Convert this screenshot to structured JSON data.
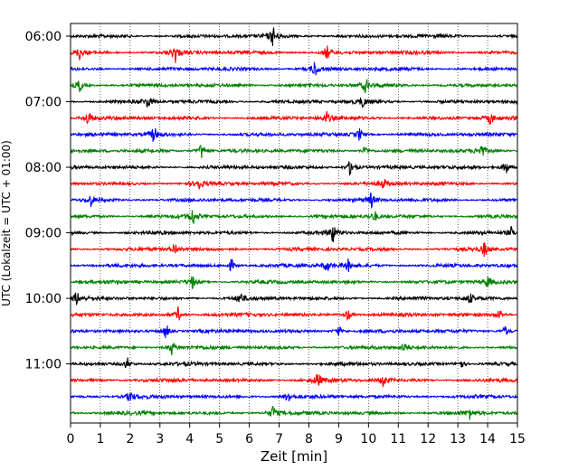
{
  "chart_data": {
    "type": "line",
    "title": "",
    "xlabel": "Zeit  [min]",
    "ylabel": "UTC (Lokalzeit = UTC + 01:00)",
    "xlim": [
      0,
      15
    ],
    "x_ticks": [
      "0",
      "1",
      "2",
      "3",
      "4",
      "5",
      "6",
      "7",
      "8",
      "9",
      "10",
      "11",
      "12",
      "13",
      "14",
      "15"
    ],
    "y_ticks": [
      "06:00",
      "07:00",
      "08:00",
      "09:00",
      "10:00",
      "11:00"
    ],
    "grid": "vertical dotted",
    "trace_interval_min": 15,
    "trace_colors": [
      "#000000",
      "#ff0000",
      "#0000ff",
      "#008000"
    ],
    "traces": [
      {
        "start": "06:00",
        "spikes": [
          [
            6.8,
            0.9
          ]
        ]
      },
      {
        "start": "06:15",
        "spikes": [
          [
            0.3,
            0.6
          ],
          [
            3.5,
            1.0
          ],
          [
            8.6,
            0.7
          ]
        ]
      },
      {
        "start": "06:30",
        "spikes": [
          [
            8.2,
            0.8
          ]
        ]
      },
      {
        "start": "06:45",
        "spikes": [
          [
            0.3,
            0.6
          ],
          [
            9.9,
            0.7
          ]
        ]
      },
      {
        "start": "07:00",
        "spikes": [
          [
            2.6,
            0.6
          ],
          [
            9.8,
            0.5
          ]
        ]
      },
      {
        "start": "07:15",
        "spikes": [
          [
            0.6,
            0.8
          ],
          [
            8.6,
            0.6
          ],
          [
            14.1,
            0.6
          ]
        ]
      },
      {
        "start": "07:30",
        "spikes": [
          [
            2.8,
            0.8
          ],
          [
            9.7,
            0.6
          ]
        ]
      },
      {
        "start": "07:45",
        "spikes": [
          [
            4.4,
            0.8
          ],
          [
            9.9,
            0.5
          ],
          [
            13.8,
            0.6
          ]
        ]
      },
      {
        "start": "08:00",
        "spikes": [
          [
            9.4,
            0.9
          ],
          [
            14.6,
            0.8
          ]
        ]
      },
      {
        "start": "08:15",
        "spikes": [
          [
            4.3,
            0.6
          ],
          [
            10.5,
            0.5
          ]
        ]
      },
      {
        "start": "08:30",
        "spikes": [
          [
            0.7,
            0.6
          ],
          [
            10.1,
            0.7
          ]
        ]
      },
      {
        "start": "08:45",
        "spikes": [
          [
            4.1,
            0.8
          ],
          [
            10.2,
            0.5
          ]
        ]
      },
      {
        "start": "09:00",
        "spikes": [
          [
            8.8,
            0.9
          ],
          [
            14.8,
            0.5
          ]
        ]
      },
      {
        "start": "09:15",
        "spikes": [
          [
            3.5,
            0.6
          ],
          [
            13.9,
            0.7
          ]
        ]
      },
      {
        "start": "09:30",
        "spikes": [
          [
            5.4,
            0.6
          ],
          [
            8.6,
            0.6
          ],
          [
            9.3,
            0.6
          ]
        ]
      },
      {
        "start": "09:45",
        "spikes": [
          [
            4.1,
            0.6
          ],
          [
            14.0,
            0.6
          ]
        ]
      },
      {
        "start": "10:00",
        "spikes": [
          [
            0.2,
            0.6
          ],
          [
            5.7,
            0.6
          ],
          [
            13.4,
            0.5
          ]
        ]
      },
      {
        "start": "10:15",
        "spikes": [
          [
            3.6,
            0.7
          ],
          [
            9.3,
            0.6
          ],
          [
            14.4,
            0.5
          ]
        ]
      },
      {
        "start": "10:30",
        "spikes": [
          [
            3.2,
            0.8
          ],
          [
            9.0,
            0.5
          ],
          [
            14.6,
            0.5
          ]
        ]
      },
      {
        "start": "10:45",
        "spikes": [
          [
            3.4,
            0.7
          ],
          [
            11.2,
            0.5
          ]
        ]
      },
      {
        "start": "11:00",
        "spikes": [
          [
            1.9,
            0.6
          ],
          [
            13.1,
            0.5
          ]
        ]
      },
      {
        "start": "11:15",
        "spikes": [
          [
            8.3,
            0.8
          ],
          [
            10.5,
            0.7
          ]
        ]
      },
      {
        "start": "11:30",
        "spikes": [
          [
            2.0,
            0.6
          ],
          [
            7.3,
            0.6
          ]
        ]
      },
      {
        "start": "11:45",
        "spikes": [
          [
            6.8,
            0.7
          ],
          [
            13.4,
            0.5
          ]
        ]
      }
    ]
  }
}
